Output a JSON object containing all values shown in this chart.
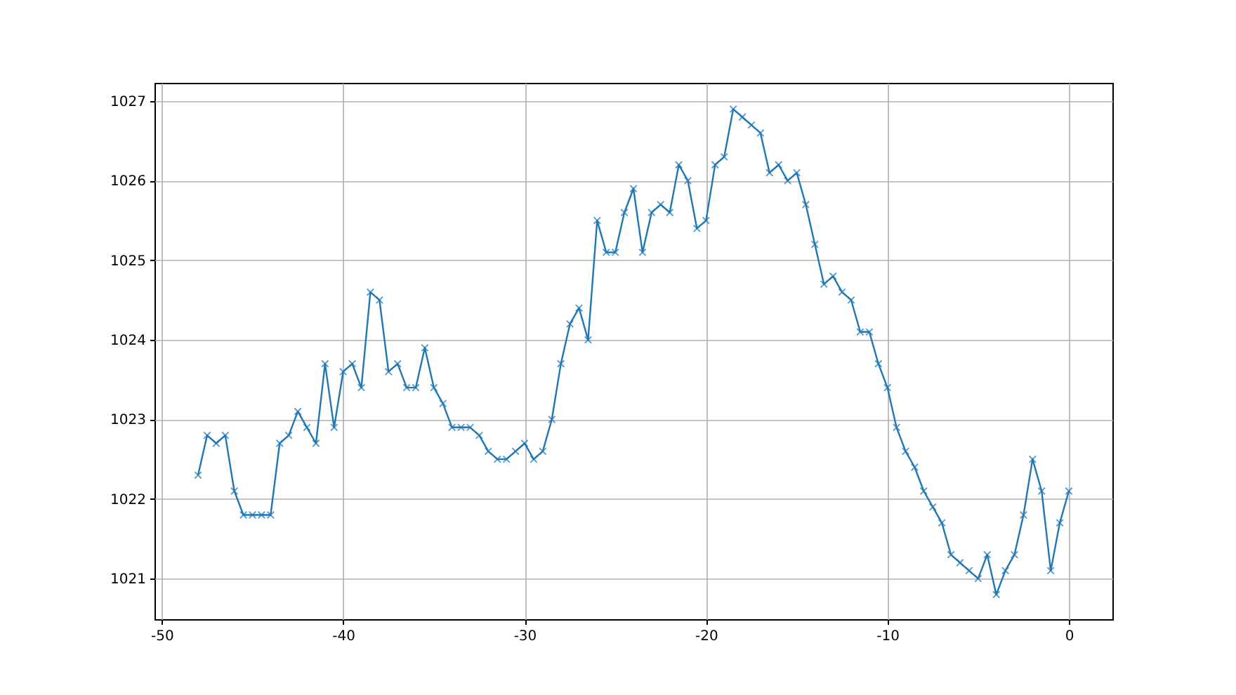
{
  "chart_data": {
    "type": "line",
    "x": [
      -48,
      -47.5,
      -47,
      -46.5,
      -46,
      -45.5,
      -45,
      -44.5,
      -44,
      -43.5,
      -43,
      -42.5,
      -42,
      -41.5,
      -41,
      -40.5,
      -40,
      -39.5,
      -39,
      -38.5,
      -38,
      -37.5,
      -37,
      -36.5,
      -36,
      -35.5,
      -35,
      -34.5,
      -34,
      -33.5,
      -33,
      -32.5,
      -32,
      -31.5,
      -31,
      -30.5,
      -30,
      -29.5,
      -29,
      -28.5,
      -28,
      -27.5,
      -27,
      -26.5,
      -26,
      -25.5,
      -25,
      -24.5,
      -24,
      -23.5,
      -23,
      -22.5,
      -22,
      -21.5,
      -21,
      -20.5,
      -20,
      -19.5,
      -19,
      -18.5,
      -18,
      -17.5,
      -17,
      -16.5,
      -16,
      -15.5,
      -15,
      -14.5,
      -14,
      -13.5,
      -13,
      -12.5,
      -12,
      -11.5,
      -11,
      -10.5,
      -10,
      -9.5,
      -9,
      -8.5,
      -8,
      -7.5,
      -7,
      -6.5,
      -6,
      -5.5,
      -5,
      -4.5,
      -4,
      -3.5,
      -3,
      -2.5,
      -2,
      -1.5,
      -1,
      -0.5,
      0
    ],
    "series": [
      {
        "color": "#1f77b4",
        "values": [
          1022.3,
          1022.8,
          1022.7,
          1022.8,
          1022.1,
          1021.8,
          1021.8,
          1021.8,
          1021.8,
          1022.7,
          1022.8,
          1023.1,
          1022.9,
          1022.7,
          1023.7,
          1022.9,
          1023.6,
          1023.7,
          1023.4,
          1024.6,
          1024.5,
          1023.6,
          1023.7,
          1023.4,
          1023.4,
          1023.9,
          1023.4,
          1023.2,
          1022.9,
          1022.9,
          1022.9,
          1022.8,
          1022.6,
          1022.5,
          1022.5,
          1022.6,
          1022.7,
          1022.5,
          1022.6,
          1023.0,
          1023.7,
          1024.2,
          1024.4,
          1024.0,
          1025.5,
          1025.1,
          1025.1,
          1025.6,
          1025.9,
          1025.1,
          1025.6,
          1025.7,
          1025.6,
          1026.2,
          1026.0,
          1025.4,
          1025.5,
          1026.2,
          1026.3,
          1026.9,
          1026.8,
          1026.7,
          1026.6,
          1026.1,
          1026.2,
          1026.0,
          1026.1,
          1025.7,
          1025.2,
          1024.7,
          1024.8,
          1024.6,
          1024.5,
          1024.1,
          1024.1,
          1023.7,
          1023.4,
          1022.9,
          1022.6,
          1022.4,
          1022.1,
          1021.9,
          1021.7,
          1021.3,
          1021.2,
          1021.1,
          1021.0,
          1021.3,
          1020.8,
          1021.1,
          1021.3,
          1021.8,
          1022.5,
          1022.1,
          1021.1,
          1021.7,
          1022.1
        ]
      }
    ],
    "xlim": [
      -50.4,
      2.4
    ],
    "xticks": [
      -50,
      -40,
      -30,
      -20,
      -10,
      0
    ],
    "ylim": [
      1020.49,
      1027.23
    ],
    "yticks": [
      1021,
      1022,
      1023,
      1024,
      1025,
      1026,
      1027
    ],
    "grid": true,
    "marker": "cross",
    "line_style": "solid"
  }
}
